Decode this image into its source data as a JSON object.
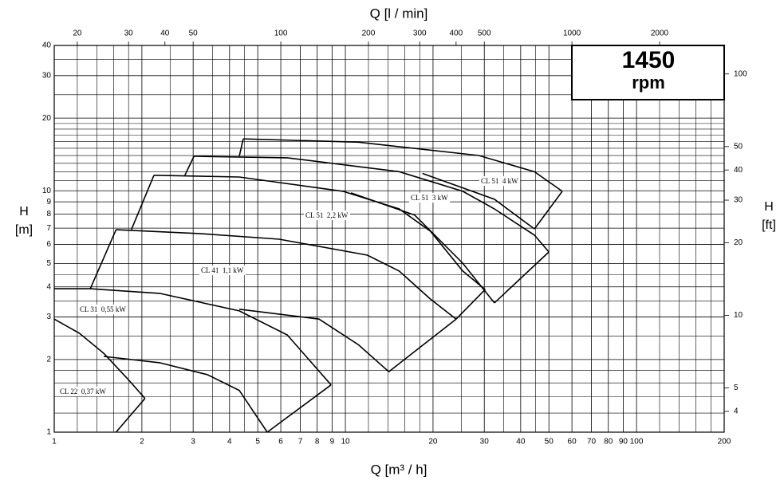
{
  "chart_data": {
    "type": "line",
    "title": "Q [l / min]",
    "xlabel": "Q [m³ / h]",
    "ylabel": [
      "H",
      "[m]"
    ],
    "y2label": [
      "H",
      "[ft]"
    ],
    "box": [
      "1450",
      "rpm"
    ],
    "xscale": "log",
    "yscale": "log",
    "grid": true,
    "color": "#000000",
    "xlim": [
      1,
      200
    ],
    "xticks": [
      1,
      2,
      3,
      4,
      5,
      6,
      7,
      8,
      9,
      10,
      20,
      30,
      40,
      50,
      60,
      70,
      80,
      90,
      100,
      200
    ],
    "xminor": [
      1.2,
      1.4,
      1.6,
      1.8,
      2.5,
      3.5,
      4.5,
      12,
      14,
      16,
      18,
      25,
      35,
      45,
      120,
      140,
      160,
      180
    ],
    "x2lim": [
      16.6667,
      3333.33
    ],
    "x2ticks": [
      20,
      30,
      40,
      50,
      100,
      200,
      300,
      400,
      500,
      1000,
      2000
    ],
    "ylim": [
      1,
      40
    ],
    "yticks": [
      1,
      2,
      3,
      4,
      5,
      6,
      7,
      8,
      9,
      10,
      20,
      30,
      40
    ],
    "yminor": [
      1.2,
      1.4,
      1.6,
      1.8,
      2.5,
      3.5,
      4.5,
      11,
      12,
      13,
      14,
      15,
      16,
      17,
      18,
      19,
      25,
      35
    ],
    "y2lim": [
      3.2808,
      131.23
    ],
    "y2ticks": [
      4,
      5,
      10,
      20,
      30,
      40,
      50,
      100
    ],
    "annotations": [
      "CL 22  0,37 kW",
      "CL 31  0,55 kW",
      "CL 41  1,1 kW",
      "CL 51  2,2 kW",
      "CL 51  3 kW",
      "CL 51  4 kW"
    ],
    "series": [
      {
        "x": [
          1,
          1.22,
          1.48,
          1.79,
          2.05
        ],
        "values": [
          2.94,
          2.57,
          2.12,
          1.66,
          1.38
        ]
      },
      {
        "x": [
          2.05,
          1.63
        ],
        "values": [
          1.38,
          1
        ]
      },
      {
        "x": [
          1.48,
          2.3,
          3.36,
          4.32,
          5.39
        ],
        "values": [
          2.06,
          1.94,
          1.73,
          1.49,
          1
        ]
      },
      {
        "x": [
          1,
          1.33,
          2.3,
          4.32,
          6.31,
          8.93
        ],
        "values": [
          3.93,
          3.93,
          3.76,
          3.18,
          2.53,
          1.57
        ]
      },
      {
        "x": [
          8.93,
          5.39
        ],
        "values": [
          1.57,
          1
        ]
      },
      {
        "x": [
          1.33,
          1.63
        ],
        "values": [
          3.93,
          6.9
        ]
      },
      {
        "x": [
          4.32,
          8.12,
          11.1,
          14.1
        ],
        "values": [
          3.23,
          2.94,
          2.3,
          1.78
        ]
      },
      {
        "x": [
          1.63,
          3.15,
          5.93,
          11.9,
          15.3,
          19.6,
          24.0
        ],
        "values": [
          6.9,
          6.65,
          6.3,
          5.41,
          4.65,
          3.56,
          2.94
        ]
      },
      {
        "x": [
          24.0,
          14.1
        ],
        "values": [
          2.94,
          1.78
        ]
      },
      {
        "x": [
          1.84,
          2.2
        ],
        "values": [
          6.9,
          11.6
        ]
      },
      {
        "x": [
          2.2,
          4.32,
          9.81,
          15.3,
          19.6,
          25.3,
          30.2
        ],
        "values": [
          11.6,
          11.4,
          9.95,
          8.41,
          6.8,
          4.65,
          3.9
        ]
      },
      {
        "x": [
          30.2,
          24.0
        ],
        "values": [
          3.9,
          2.94
        ]
      },
      {
        "x": [
          2.81,
          3.02
        ],
        "values": [
          11.6,
          13.9
        ]
      },
      {
        "x": [
          3.02,
          6.31,
          15.3,
          25.3,
          32.5,
          44.6,
          50.0
        ],
        "values": [
          13.9,
          13.7,
          12.0,
          9.95,
          8.41,
          6.55,
          5.58
        ]
      },
      {
        "x": [
          50.0,
          32.5
        ],
        "values": [
          5.58,
          3.43
        ]
      },
      {
        "x": [
          10.45,
          17.3,
          25.3,
          32.5
        ],
        "values": [
          9.8,
          7.93,
          5.01,
          3.43
        ]
      },
      {
        "x": [
          4.32,
          4.46
        ],
        "values": [
          13.9,
          16.4
        ]
      },
      {
        "x": [
          4.46,
          11.1,
          28.7,
          44.6,
          55.6
        ],
        "values": [
          16.4,
          15.9,
          14.0,
          12.0,
          9.95
        ]
      },
      {
        "x": [
          55.6,
          44.6
        ],
        "values": [
          9.95,
          6.95
        ]
      },
      {
        "x": [
          18.4,
          32.5,
          44.6
        ],
        "values": [
          11.8,
          9.22,
          6.95
        ]
      }
    ]
  }
}
